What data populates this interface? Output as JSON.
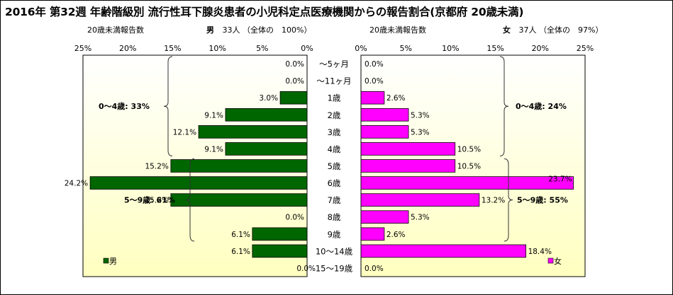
{
  "chart_data": {
    "type": "bar",
    "title": "2016年 第32週 年齢階級別 流行性耳下腺炎患者の小児科定点医療機関からの報告割合(京都府 20歳未満)",
    "categories": [
      "～5ヶ月",
      "～11ヶ月",
      "1歳",
      "2歳",
      "3歳",
      "4歳",
      "5歳",
      "6歳",
      "7歳",
      "8歳",
      "9歳",
      "10～14歳",
      "15～19歳"
    ],
    "xlim": [
      0,
      25
    ],
    "x_ticks": [
      "25%",
      "20%",
      "15%",
      "10%",
      "5%",
      "0%"
    ],
    "x_ticks_right": [
      "0%",
      "5%",
      "10%",
      "15%",
      "20%",
      "25%"
    ],
    "series": [
      {
        "name": "男",
        "color": "#006600",
        "values": [
          0.0,
          0.0,
          3.0,
          9.1,
          12.1,
          9.1,
          15.2,
          24.2,
          15.2,
          0.0,
          6.1,
          6.1,
          0.0
        ],
        "labels": [
          "0.0%",
          "0.0%",
          "3.0%",
          "9.1%",
          "12.1%",
          "9.1%",
          "15.2%",
          "24.2%",
          "15.2%",
          "0.0%",
          "6.1%",
          "6.1%",
          "0.0%"
        ]
      },
      {
        "name": "女",
        "color": "#ff00ff",
        "values": [
          0.0,
          0.0,
          2.6,
          5.3,
          5.3,
          10.5,
          10.5,
          23.7,
          13.2,
          5.3,
          2.6,
          18.4,
          0.0
        ],
        "labels": [
          "0.0%",
          "0.0%",
          "2.6%",
          "5.3%",
          "5.3%",
          "10.5%",
          "10.5%",
          "23.7%",
          "13.2%",
          "5.3%",
          "2.6%",
          "18.4%",
          "0.0%"
        ]
      }
    ],
    "annotations": {
      "male_0_4": "0～4歳: 33%",
      "male_5_9": "5～9歳: 61%",
      "female_0_4": "0～4歳: 24%",
      "female_5_9": "5～9歳: 55%"
    },
    "left_header": {
      "label": "20歳未満報告数",
      "sex": "男",
      "count": "33人",
      "share": "（全体の　100%）"
    },
    "right_header": {
      "label": "20歳未満報告数",
      "sex": "女",
      "count": "37人",
      "share": "（全体の　97%）"
    },
    "legend": {
      "male": "男",
      "female": "女"
    }
  },
  "colors": {
    "male": "#006600",
    "female": "#ff00ff",
    "plot_top": "#ffffff",
    "plot_bottom": "#ffffc0"
  }
}
